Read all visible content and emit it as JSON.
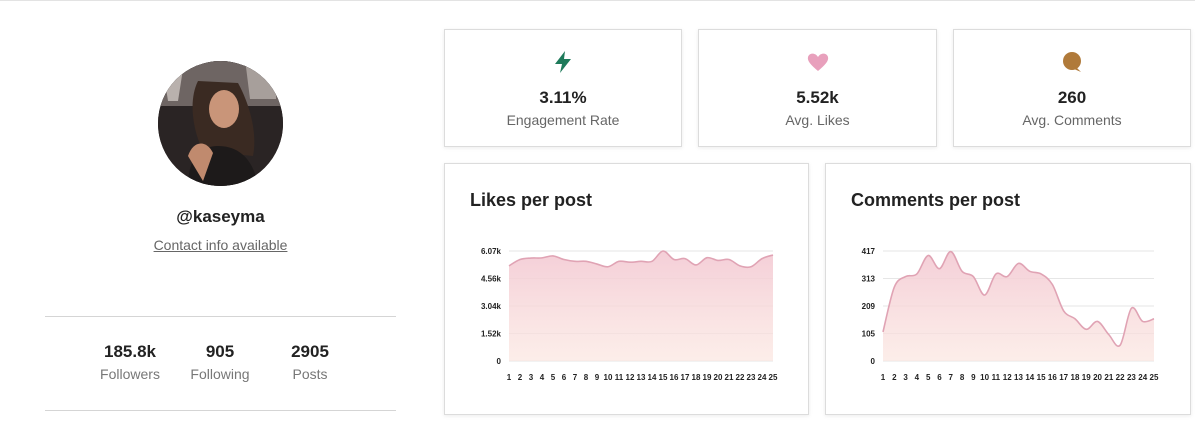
{
  "profile": {
    "handle": "@kaseyma",
    "contact_label": "Contact info available",
    "stats": [
      {
        "value": "185.8k",
        "label": "Followers"
      },
      {
        "value": "905",
        "label": "Following"
      },
      {
        "value": "2905",
        "label": "Posts"
      }
    ]
  },
  "metrics": [
    {
      "icon": "lightning-icon",
      "color": "#1e7a5a",
      "value": "3.11%",
      "label": "Engagement Rate"
    },
    {
      "icon": "heart-icon",
      "color": "#e8a0bc",
      "value": "5.52k",
      "label": "Avg. Likes"
    },
    {
      "icon": "speech-bubble-icon",
      "color": "#b07a3a",
      "value": "260",
      "label": "Avg. Comments"
    }
  ],
  "chart_data": [
    {
      "type": "area",
      "title": "Likes per post",
      "x": [
        1,
        2,
        3,
        4,
        5,
        6,
        7,
        8,
        9,
        10,
        11,
        12,
        13,
        14,
        15,
        16,
        17,
        18,
        19,
        20,
        21,
        22,
        23,
        24,
        25
      ],
      "yticks": [
        "0",
        "1.52k",
        "3.04k",
        "4.56k",
        "6.07k"
      ],
      "ylim": [
        0,
        6070
      ],
      "values": [
        5250,
        5600,
        5680,
        5690,
        5800,
        5600,
        5500,
        5500,
        5350,
        5200,
        5500,
        5450,
        5500,
        5500,
        6070,
        5600,
        5650,
        5300,
        5700,
        5550,
        5600,
        5250,
        5200,
        5650,
        5850
      ],
      "grid": true,
      "color": "#e0a3b4"
    },
    {
      "type": "area",
      "title": "Comments per post",
      "x": [
        1,
        2,
        3,
        4,
        5,
        6,
        7,
        8,
        9,
        10,
        11,
        12,
        13,
        14,
        15,
        16,
        17,
        18,
        19,
        20,
        21,
        22,
        23,
        24,
        25
      ],
      "yticks": [
        "0",
        "105",
        "209",
        "313",
        "417"
      ],
      "ylim": [
        0,
        417
      ],
      "values": [
        110,
        280,
        320,
        330,
        400,
        350,
        415,
        340,
        320,
        250,
        330,
        320,
        370,
        340,
        330,
        290,
        190,
        160,
        120,
        150,
        100,
        60,
        200,
        150,
        160
      ],
      "grid": true,
      "color": "#e0a3b4"
    }
  ]
}
